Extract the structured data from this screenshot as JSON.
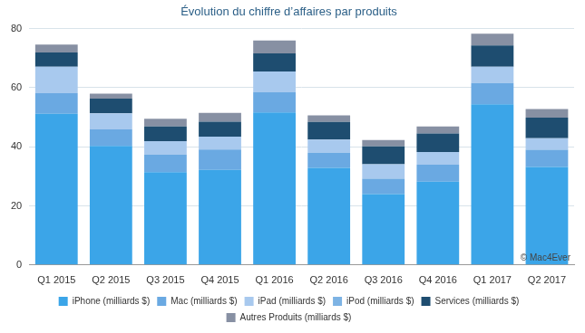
{
  "chart_data": {
    "type": "bar",
    "title": "Évolution du chiffre d’affaires par produits",
    "annotation": "© Mac4Ever",
    "categories": [
      "Q1 2015",
      "Q2 2015",
      "Q3 2015",
      "Q4 2015",
      "Q1 2016",
      "Q2 2016",
      "Q3 2016",
      "Q4 2016",
      "Q1 2017",
      "Q2 2017"
    ],
    "stacked": true,
    "grid": true,
    "legend": "bottom",
    "ylim": [
      0,
      80
    ],
    "yticks": [
      0,
      20,
      40,
      60,
      80
    ],
    "series": [
      {
        "name": "iPhone (milliards $)",
        "color": "#3ba5e8",
        "values": [
          51.2,
          40.3,
          31.4,
          32.2,
          51.6,
          32.9,
          24.0,
          28.2,
          54.4,
          33.2
        ]
      },
      {
        "name": "Mac (milliards $)",
        "color": "#6aa9e2",
        "values": [
          6.9,
          5.6,
          6.0,
          6.9,
          6.8,
          5.1,
          5.2,
          5.7,
          7.2,
          5.8
        ]
      },
      {
        "name": "iPad (milliards $)",
        "color": "#a8c9ee",
        "values": [
          9.0,
          5.4,
          4.5,
          4.3,
          7.1,
          4.4,
          4.9,
          4.3,
          5.5,
          3.9
        ]
      },
      {
        "name": "iPod (milliards $)",
        "color": "#7db3e4",
        "values": [
          0,
          0,
          0,
          0,
          0,
          0,
          0,
          0,
          0,
          0
        ]
      },
      {
        "name": "Services (milliards $)",
        "color": "#1e4d70",
        "values": [
          4.8,
          5.0,
          5.0,
          5.1,
          6.1,
          6.0,
          6.0,
          6.3,
          7.2,
          7.0
        ]
      },
      {
        "name": "Autres Produits (milliards $)",
        "color": "#8790a3",
        "values": [
          2.7,
          1.7,
          2.6,
          3.0,
          4.4,
          2.2,
          2.2,
          2.4,
          4.0,
          2.9
        ]
      }
    ]
  }
}
